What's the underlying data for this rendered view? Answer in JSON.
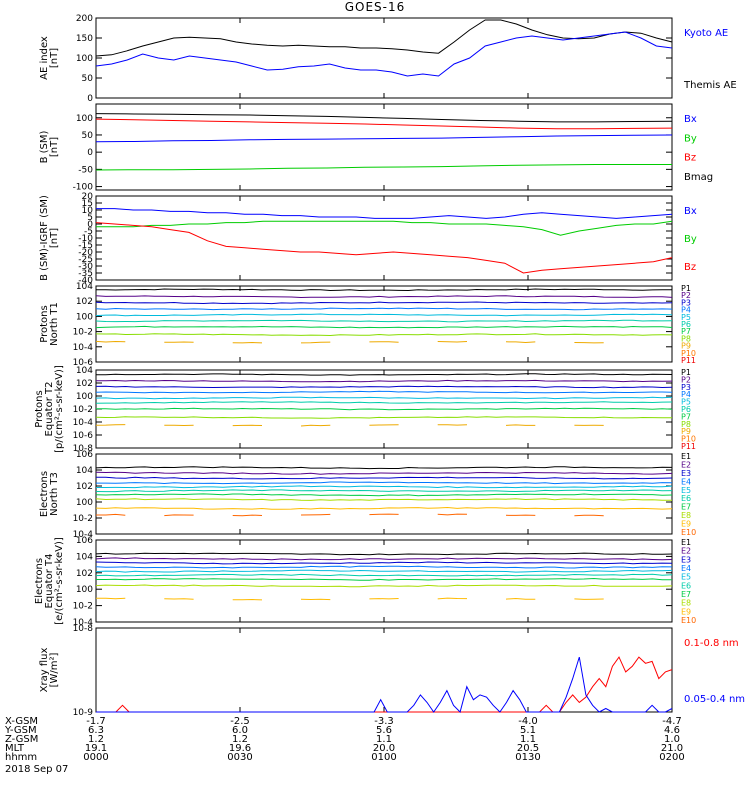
{
  "title": "GOES-16",
  "colors": {
    "black": "#000000",
    "blue": "#0000ff",
    "red": "#ff0000",
    "green": "#00cc00",
    "p": [
      "#000000",
      "#550088",
      "#0000cc",
      "#0077ff",
      "#00bbdd",
      "#00ccaa",
      "#00cc44",
      "#88dd00",
      "#eeaa00",
      "#ff7700",
      "#ee0000"
    ],
    "e": [
      "#000000",
      "#550088",
      "#0000cc",
      "#0077ff",
      "#00bbdd",
      "#00ccaa",
      "#00cc44",
      "#aadd00",
      "#ffbb00",
      "#ff6600",
      "#dd0000"
    ]
  },
  "chart_data": [
    {
      "type": "line",
      "id": "ae",
      "ylabel": [
        "AE index",
        "[nT]"
      ],
      "yscale": "linear",
      "ylim": [
        0,
        200
      ],
      "yticks": [
        0,
        50,
        100,
        150,
        200
      ],
      "legend": [
        {
          "label": "Kyoto AE",
          "color": "blue"
        },
        {
          "label": "Themis AE",
          "color": "black"
        }
      ],
      "series": [
        {
          "name": "Themis AE",
          "color": "black",
          "values": [
            105,
            108,
            118,
            130,
            140,
            150,
            152,
            150,
            148,
            140,
            135,
            132,
            130,
            132,
            130,
            128,
            128,
            125,
            125,
            123,
            120,
            115,
            112,
            140,
            170,
            195,
            195,
            185,
            170,
            158,
            150,
            148,
            150,
            160,
            165,
            162,
            150,
            140
          ]
        },
        {
          "name": "Kyoto AE",
          "color": "blue",
          "values": [
            80,
            85,
            95,
            110,
            100,
            95,
            105,
            100,
            95,
            90,
            80,
            70,
            72,
            78,
            80,
            85,
            75,
            70,
            70,
            65,
            55,
            60,
            55,
            85,
            100,
            130,
            140,
            150,
            155,
            150,
            145,
            150,
            155,
            160,
            165,
            150,
            130,
            125
          ]
        }
      ]
    },
    {
      "type": "line",
      "id": "bsm",
      "ylabel": [
        "B (SM)",
        "[nT]"
      ],
      "yscale": "linear",
      "ylim": [
        -110,
        140
      ],
      "yticks": [
        -100,
        -50,
        0,
        50,
        100
      ],
      "legend": [
        {
          "label": "Bx",
          "color": "blue"
        },
        {
          "label": "By",
          "color": "green"
        },
        {
          "label": "Bz",
          "color": "red"
        },
        {
          "label": "Bmag",
          "color": "black"
        }
      ],
      "series": [
        {
          "name": "Bmag",
          "color": "black",
          "values": [
            112,
            111,
            110,
            109,
            108,
            106,
            104,
            101,
            98,
            95,
            92,
            90,
            88,
            88,
            89,
            90
          ]
        },
        {
          "name": "Bz",
          "color": "red",
          "values": [
            96,
            94,
            92,
            90,
            88,
            86,
            84,
            82,
            79,
            76,
            73,
            70,
            68,
            68,
            69,
            70
          ]
        },
        {
          "name": "Bx",
          "color": "blue",
          "values": [
            30,
            31,
            33,
            34,
            36,
            37,
            38,
            39,
            40,
            41,
            43,
            45,
            47,
            48,
            49,
            50
          ]
        },
        {
          "name": "By",
          "color": "green",
          "values": [
            -52,
            -51,
            -51,
            -50,
            -49,
            -47,
            -46,
            -44,
            -43,
            -42,
            -40,
            -38,
            -37,
            -36,
            -36,
            -36
          ]
        }
      ]
    },
    {
      "type": "line",
      "id": "digrf",
      "ylabel": [
        "B (SM)-IGRF (SM)",
        "[nT]"
      ],
      "yscale": "linear",
      "ylim": [
        -40,
        20
      ],
      "yticks": [
        -40,
        -35,
        -30,
        -25,
        -20,
        -15,
        -10,
        -5,
        0,
        5,
        10,
        15,
        20
      ],
      "legend": [
        {
          "label": "Bx",
          "color": "blue"
        },
        {
          "label": "By",
          "color": "green"
        },
        {
          "label": "Bz",
          "color": "red"
        }
      ],
      "series": [
        {
          "name": "Bx",
          "color": "blue",
          "values": [
            11,
            11,
            10,
            10,
            9,
            9,
            8,
            8,
            7,
            7,
            6,
            6,
            5,
            5,
            5,
            4,
            4,
            4,
            5,
            6,
            5,
            4,
            5,
            7,
            8,
            7,
            6,
            5,
            4,
            5,
            6,
            7
          ]
        },
        {
          "name": "By",
          "color": "green",
          "values": [
            -2,
            -2,
            -2,
            -1,
            -1,
            0,
            0,
            1,
            1,
            2,
            2,
            2,
            2,
            2,
            2,
            2,
            2,
            1,
            1,
            0,
            0,
            0,
            -1,
            -2,
            -4,
            -8,
            -5,
            -3,
            -1,
            0,
            0,
            2
          ]
        },
        {
          "name": "Bz",
          "color": "red",
          "values": [
            1,
            0,
            -1,
            -2,
            -4,
            -6,
            -12,
            -16,
            -17,
            -18,
            -19,
            -20,
            -20,
            -21,
            -22,
            -21,
            -20,
            -21,
            -22,
            -23,
            -24,
            -26,
            -28,
            -35,
            -33,
            -32,
            -31,
            -30,
            -29,
            -28,
            -27,
            -24
          ]
        }
      ]
    },
    {
      "type": "line",
      "id": "protons_t1",
      "ylabel": [
        "Protons",
        "North T1"
      ],
      "yscale": "log",
      "ylim": [
        1e-06,
        10000.0
      ],
      "yticks": [
        1e-06,
        0.0001,
        0.01,
        1.0,
        100.0,
        10000.0
      ],
      "tick_labels": [
        "10-6",
        "10-4",
        "10-2",
        "100",
        "102",
        "104"
      ],
      "legend": [
        "P1",
        "P2",
        "P3",
        "P4",
        "P5",
        "P6",
        "P7",
        "P8",
        "P9",
        "P10",
        "P11"
      ],
      "series": [
        {
          "name": "P1",
          "level": 3.5
        },
        {
          "name": "P2",
          "level": 2.6
        },
        {
          "name": "P3",
          "level": 1.8
        },
        {
          "name": "P4",
          "level": 1.0
        },
        {
          "name": "P5",
          "level": 0.2
        },
        {
          "name": "P6",
          "level": -0.6
        },
        {
          "name": "P7",
          "level": -1.4
        },
        {
          "name": "P8",
          "level": -2.4
        },
        {
          "name": "P9",
          "level": -3.4
        },
        {
          "name": "P10",
          "level": null
        },
        {
          "name": "P11",
          "level": null
        }
      ]
    },
    {
      "type": "line",
      "id": "protons_t2",
      "ylabel": [
        "Protons",
        "Equator T2",
        "[p/(cm²-s-sr-keV)]"
      ],
      "yscale": "log",
      "ylim": [
        1e-08,
        10000.0
      ],
      "yticks": [
        1e-08,
        1e-06,
        0.0001,
        0.01,
        1.0,
        100.0,
        10000.0
      ],
      "tick_labels": [
        "10-8",
        "10-6",
        "10-4",
        "10-2",
        "100",
        "102",
        "104"
      ],
      "legend": [
        "P1",
        "P2",
        "P3",
        "P4",
        "P5",
        "P6",
        "P7",
        "P8",
        "P9",
        "P10",
        "P11"
      ],
      "series": [
        {
          "name": "P1",
          "level": 3.3
        },
        {
          "name": "P2",
          "level": 2.3
        },
        {
          "name": "P3",
          "level": 1.4
        },
        {
          "name": "P4",
          "level": 0.6
        },
        {
          "name": "P5",
          "level": -0.3
        },
        {
          "name": "P6",
          "level": -1.0
        },
        {
          "name": "P7",
          "level": -2.0
        },
        {
          "name": "P8",
          "level": -3.3
        },
        {
          "name": "P9",
          "level": -4.5
        },
        {
          "name": "P10",
          "level": null
        },
        {
          "name": "P11",
          "level": null
        }
      ]
    },
    {
      "type": "line",
      "id": "electrons_t3",
      "ylabel": [
        "Electrons",
        "North T3"
      ],
      "yscale": "log",
      "ylim": [
        0.0001,
        1000000.0
      ],
      "yticks": [
        0.0001,
        0.01,
        1.0,
        100.0,
        10000.0,
        1000000.0
      ],
      "tick_labels": [
        "10-4",
        "10-2",
        "100",
        "102",
        "104",
        "106"
      ],
      "legend": [
        "E1",
        "E2",
        "E3",
        "E4",
        "E5",
        "E6",
        "E7",
        "E8",
        "E9",
        "E10"
      ],
      "series": [
        {
          "name": "E1",
          "level": 4.3
        },
        {
          "name": "E2",
          "level": 3.6
        },
        {
          "name": "E3",
          "level": 3.0
        },
        {
          "name": "E4",
          "level": 2.4
        },
        {
          "name": "E5",
          "level": 1.9
        },
        {
          "name": "E6",
          "level": 1.4
        },
        {
          "name": "E7",
          "level": 0.9
        },
        {
          "name": "E8",
          "level": 0.3
        },
        {
          "name": "E9",
          "level": -0.8
        },
        {
          "name": "E10",
          "level": -1.6
        }
      ]
    },
    {
      "type": "line",
      "id": "electrons_t4",
      "ylabel": [
        "Electrons",
        "Equator T4",
        "[e/(cm²-s-sr-keV)]"
      ],
      "yscale": "log",
      "ylim": [
        0.0001,
        1000000.0
      ],
      "yticks": [
        0.0001,
        0.01,
        1.0,
        100.0,
        10000.0,
        1000000.0
      ],
      "tick_labels": [
        "10-4",
        "10-2",
        "100",
        "102",
        "104",
        "106"
      ],
      "legend": [
        "E1",
        "E2",
        "E3",
        "E4",
        "E5",
        "E6",
        "E7",
        "E8",
        "E9",
        "E10"
      ],
      "series": [
        {
          "name": "E1",
          "level": 4.3
        },
        {
          "name": "E2",
          "level": 3.7
        },
        {
          "name": "E3",
          "level": 3.2
        },
        {
          "name": "E4",
          "level": 2.7
        },
        {
          "name": "E5",
          "level": 2.2
        },
        {
          "name": "E6",
          "level": 1.7
        },
        {
          "name": "E7",
          "level": 1.2
        },
        {
          "name": "E8",
          "level": 0.4
        },
        {
          "name": "E9",
          "level": -1.2
        },
        {
          "name": "E10",
          "level": null
        }
      ]
    },
    {
      "type": "line",
      "id": "xray",
      "ylabel": [
        "Xray flux",
        "[W/m²]"
      ],
      "yscale": "log",
      "ylim": [
        1e-09,
        1e-08
      ],
      "yticks": [
        1e-09,
        1e-08
      ],
      "tick_labels": [
        "10-9",
        "10-8"
      ],
      "legend": [
        {
          "label": "0.1-0.8 nm",
          "color": "red"
        },
        {
          "label": "0.05-0.4 nm",
          "color": "blue"
        }
      ],
      "series": [
        {
          "name": "0.1-0.8 nm",
          "color": "red",
          "values": [
            1e-09,
            1e-09,
            1e-09,
            1e-09,
            1.2e-09,
            1e-09,
            1e-09,
            1e-09,
            1e-09,
            1e-09,
            1e-09,
            1e-09,
            1e-09,
            1e-09,
            1e-09,
            1e-09,
            1e-09,
            1e-09,
            1e-09,
            1e-09,
            1e-09,
            1e-09,
            1e-09,
            1e-09,
            1e-09,
            1e-09,
            1e-09,
            1e-09,
            1e-09,
            1e-09,
            1e-09,
            1e-09,
            1e-09,
            1e-09,
            1e-09,
            1e-09,
            1e-09,
            1e-09,
            1e-09,
            1e-09,
            1e-09,
            1e-09,
            1e-09,
            1e-09,
            1e-09,
            1e-09,
            1e-09,
            1e-09,
            1e-09,
            1e-09,
            1e-09,
            1e-09,
            1e-09,
            1e-09,
            1e-09,
            1e-09,
            1e-09,
            1e-09,
            1e-09,
            1e-09,
            1e-09,
            1e-09,
            1e-09,
            1e-09,
            1e-09,
            1e-09,
            1e-09,
            1e-09,
            1.2e-09,
            1e-09,
            1e-09,
            1.3e-09,
            1.6e-09,
            1.3e-09,
            1.5e-09,
            2e-09,
            2.5e-09,
            2e-09,
            3.5e-09,
            4.5e-09,
            3e-09,
            3.5e-09,
            4.5e-09,
            3.8e-09,
            4e-09,
            2.5e-09,
            3e-09,
            3.2e-09
          ]
        },
        {
          "name": "0.05-0.4 nm",
          "color": "blue",
          "values": [
            1e-09,
            1e-09,
            1e-09,
            1e-09,
            1e-09,
            1e-09,
            1e-09,
            1e-09,
            1e-09,
            1e-09,
            1e-09,
            1e-09,
            1e-09,
            1e-09,
            1e-09,
            1e-09,
            1e-09,
            1e-09,
            1e-09,
            1e-09,
            1e-09,
            1e-09,
            1e-09,
            1e-09,
            1e-09,
            1e-09,
            1e-09,
            1e-09,
            1e-09,
            1e-09,
            1e-09,
            1e-09,
            1e-09,
            1e-09,
            1e-09,
            1e-09,
            1e-09,
            1e-09,
            1e-09,
            1e-09,
            1e-09,
            1e-09,
            1e-09,
            1.4e-09,
            1e-09,
            1e-09,
            1e-09,
            1e-09,
            1.2e-09,
            1.6e-09,
            1.3e-09,
            1e-09,
            1.3e-09,
            1.8e-09,
            1.2e-09,
            1e-09,
            2e-09,
            1.4e-09,
            1.6e-09,
            1.5e-09,
            1.2e-09,
            1e-09,
            1.3e-09,
            1.8e-09,
            1.4e-09,
            1e-09,
            1e-09,
            1e-09,
            1e-09,
            1e-09,
            1e-09,
            1.5e-09,
            2.5e-09,
            4.5e-09,
            1.6e-09,
            1.2e-09,
            1e-09,
            1.1e-09,
            1e-09,
            1e-09,
            1e-09,
            1e-09,
            1e-09,
            1e-09,
            1.2e-09,
            1e-09,
            1e-09,
            1.1e-09
          ]
        }
      ]
    }
  ],
  "xaxis": {
    "row_labels": [
      "X-GSM",
      "Y-GSM",
      "Z-GSM",
      "MLT",
      "hhmm"
    ],
    "columns": [
      {
        "values": [
          "-1.7",
          "6.3",
          "1.2",
          "19.1",
          "0000"
        ]
      },
      {
        "values": [
          "-2.5",
          "6.0",
          "1.2",
          "19.6",
          "0030"
        ]
      },
      {
        "values": [
          "-3.3",
          "5.6",
          "1.1",
          "20.0",
          "0100"
        ]
      },
      {
        "values": [
          "-4.0",
          "5.1",
          "1.1",
          "20.5",
          "0130"
        ]
      },
      {
        "values": [
          "-4.7",
          "4.6",
          "1.0",
          "21.0",
          "0200"
        ]
      }
    ],
    "date": "2018 Sep 07"
  }
}
